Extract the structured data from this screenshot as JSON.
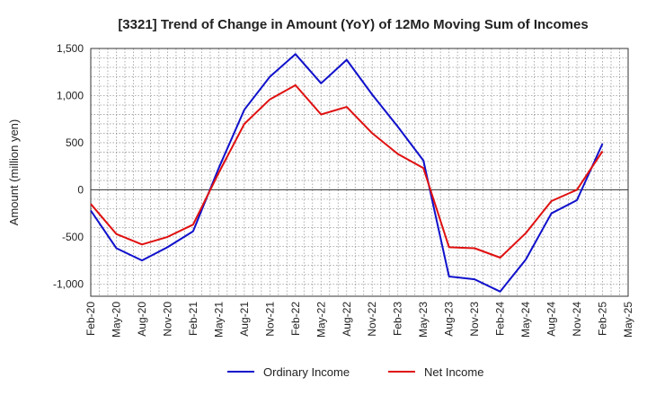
{
  "chart_data": {
    "type": "line",
    "title": "[3321]  Trend of Change in Amount (YoY) of 12Mo Moving Sum of Incomes",
    "xlabel": "",
    "ylabel": "Amount (million yen)",
    "ylim": [
      -1130,
      1500
    ],
    "yticks": [
      1500,
      1000,
      500,
      0,
      -500,
      -1000
    ],
    "ytick_labels": [
      "1,500",
      "1,000",
      "500",
      "0",
      "-500",
      "-1,000"
    ],
    "categories": [
      "Feb-20",
      "May-20",
      "Aug-20",
      "Nov-20",
      "Feb-21",
      "May-21",
      "Aug-21",
      "Nov-21",
      "Feb-22",
      "May-22",
      "Aug-22",
      "Nov-22",
      "Feb-23",
      "May-23",
      "Aug-23",
      "Nov-23",
      "Feb-24",
      "May-24",
      "Aug-24",
      "Nov-24",
      "Feb-25",
      "May-25"
    ],
    "grid": true,
    "legend_position": "bottom",
    "series": [
      {
        "name": "Ordinary Income",
        "color": "#1010cc",
        "values": [
          -220,
          -620,
          -750,
          -610,
          -440,
          230,
          850,
          1200,
          1440,
          1130,
          1380,
          1010,
          670,
          310,
          -920,
          -950,
          -1080,
          -740,
          -250,
          -110,
          490,
          null
        ]
      },
      {
        "name": "Net Income",
        "color": "#e01010",
        "values": [
          -150,
          -470,
          -580,
          -500,
          -370,
          180,
          700,
          960,
          1110,
          800,
          880,
          600,
          380,
          230,
          -610,
          -620,
          -720,
          -460,
          -120,
          0,
          410,
          null
        ]
      }
    ]
  }
}
